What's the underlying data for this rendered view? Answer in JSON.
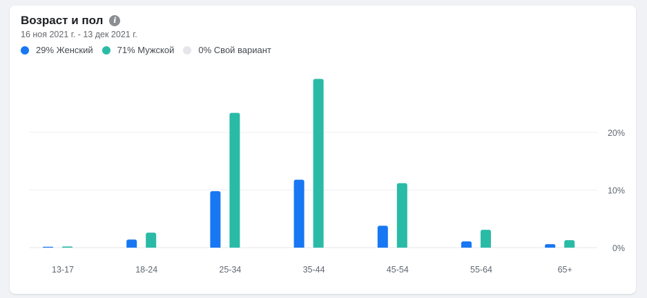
{
  "header": {
    "title": "Возраст и пол",
    "info_icon": "info-icon",
    "date_range": "16 ноя 2021 г. - 13 дек 2021 г."
  },
  "legend": [
    {
      "label": "29% Женский",
      "color": "#1877f2"
    },
    {
      "label": "71% Мужской",
      "color": "#2abba7"
    },
    {
      "label": "0% Свой вариант",
      "color": "#e4e6eb"
    }
  ],
  "chart_data": {
    "type": "bar",
    "categories": [
      "13-17",
      "18-24",
      "25-34",
      "35-44",
      "45-54",
      "55-64",
      "65+"
    ],
    "series": [
      {
        "name": "Женский",
        "color": "#1877f2",
        "values": [
          0.1,
          1.4,
          9.8,
          11.8,
          3.8,
          1.1,
          0.6
        ]
      },
      {
        "name": "Мужской",
        "color": "#2abba7",
        "values": [
          0.2,
          2.6,
          23.4,
          29.3,
          11.2,
          3.1,
          1.3
        ]
      },
      {
        "name": "Свой вариант",
        "color": "#e4e6eb",
        "values": [
          0,
          0,
          0,
          0,
          0,
          0,
          0
        ]
      }
    ],
    "yticks": [
      0,
      10,
      20
    ],
    "ytick_labels": [
      "0%",
      "10%",
      "20%"
    ],
    "ylim": [
      0,
      30
    ],
    "grid": true,
    "legend_position": "top-left"
  }
}
